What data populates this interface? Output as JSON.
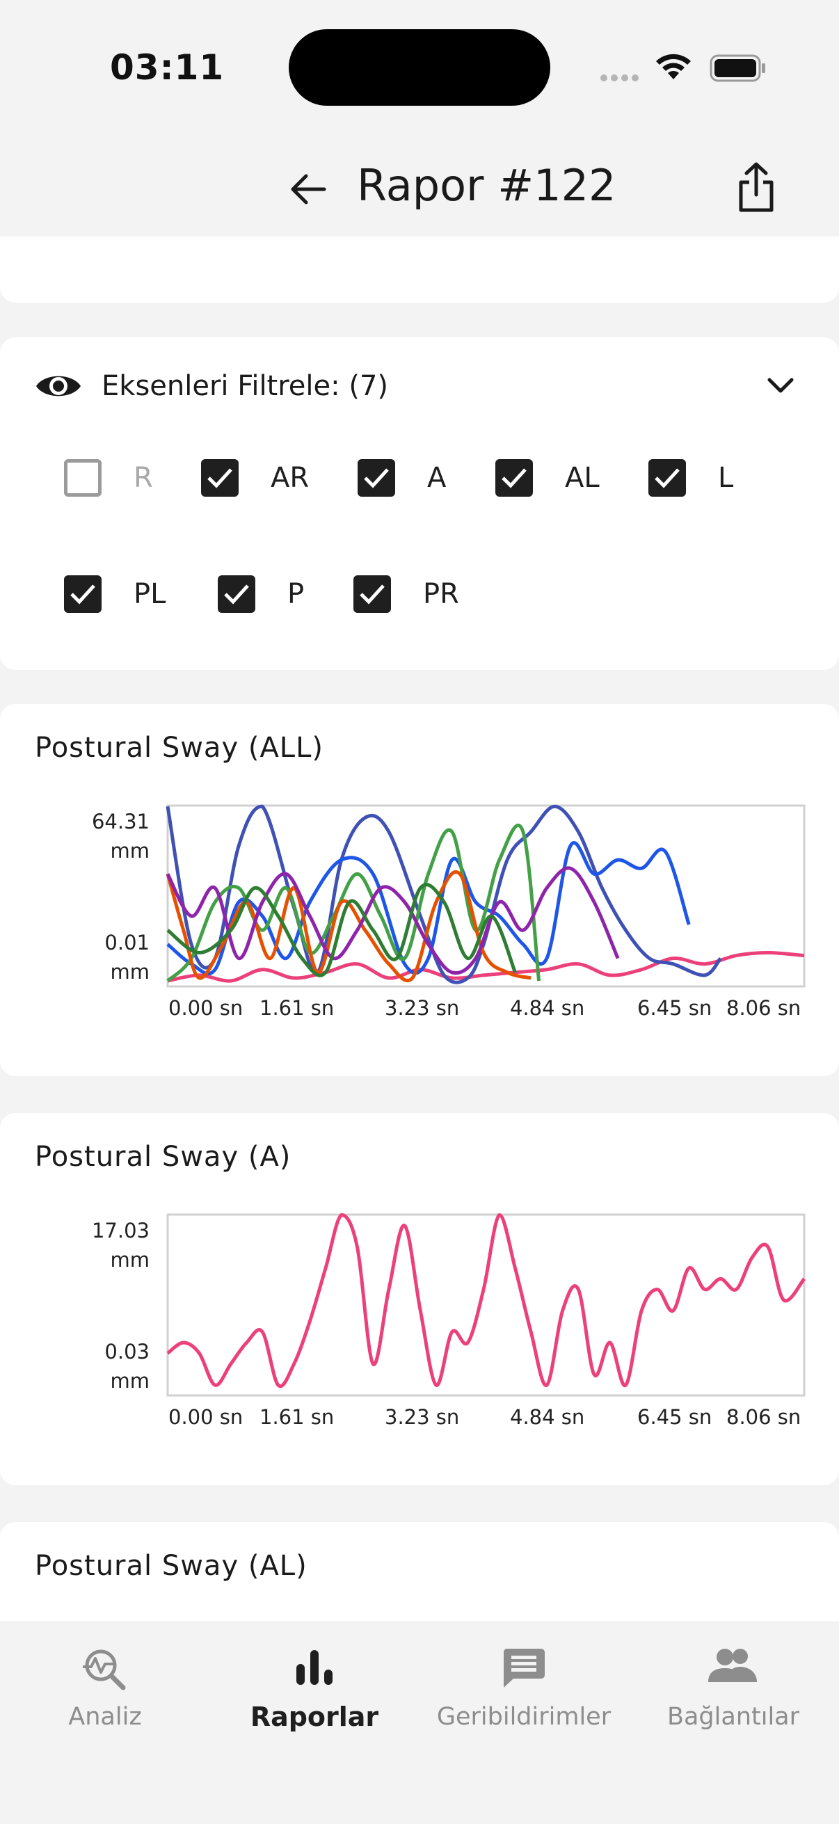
{
  "status_bar": {
    "time": "03:11"
  },
  "app_bar": {
    "title": "Rapor #122"
  },
  "filter": {
    "title": "Eksenleri Filtrele: (7)",
    "options": [
      {
        "label": "R",
        "checked": false
      },
      {
        "label": "AR",
        "checked": true
      },
      {
        "label": "A",
        "checked": true
      },
      {
        "label": "AL",
        "checked": true
      },
      {
        "label": "L",
        "checked": true
      },
      {
        "label": "PL",
        "checked": true
      },
      {
        "label": "P",
        "checked": true
      },
      {
        "label": "PR",
        "checked": true
      }
    ]
  },
  "charts": {
    "all": {
      "title": "Postural Sway (ALL)"
    },
    "a": {
      "title": "Postural Sway (A)"
    },
    "al": {
      "title": "Postural Sway (AL)"
    }
  },
  "chart_data": [
    {
      "type": "line",
      "title": "Postural Sway (ALL)",
      "y_ticks": [
        "64.31\nmm",
        "0.01\nmm"
      ],
      "x_ticks": [
        "0.00 sn",
        "1.61 sn",
        "3.23 sn",
        "4.84 sn",
        "6.45 sn",
        "8.06 sn"
      ],
      "ylim": [
        0.01,
        64.31
      ],
      "xlim": [
        0,
        8.06
      ],
      "series": [
        {
          "color": "#ec407a",
          "x": [
            0,
            0.4,
            0.8,
            1.2,
            1.6,
            2.0,
            2.4,
            2.8,
            3.2,
            3.6,
            4.0,
            4.4,
            4.8,
            5.2,
            5.6,
            6.0,
            6.4,
            6.8,
            7.2,
            7.6,
            8.06
          ],
          "y": [
            2,
            4,
            2,
            6,
            3,
            5,
            8,
            3,
            6,
            3,
            4,
            5,
            6,
            8,
            4,
            6,
            10,
            8,
            11,
            12,
            11
          ]
        },
        {
          "color": "#3f51b5",
          "x": [
            0,
            0.3,
            0.6,
            0.9,
            1.2,
            1.6,
            1.9,
            2.2,
            2.5,
            2.8,
            3.2,
            3.5,
            3.8,
            4.0,
            4.3,
            4.6,
            4.9,
            5.2,
            5.5,
            5.8,
            6.1,
            6.4,
            6.8,
            7.0
          ],
          "y": [
            64,
            15,
            10,
            50,
            64,
            28,
            5,
            45,
            60,
            55,
            25,
            4,
            3,
            15,
            45,
            55,
            64,
            55,
            35,
            20,
            10,
            8,
            4,
            10
          ]
        },
        {
          "color": "#1e56e8",
          "x": [
            0,
            0.3,
            0.6,
            0.9,
            1.2,
            1.5,
            1.8,
            2.2,
            2.6,
            3.0,
            3.3,
            3.6,
            3.9,
            4.2,
            4.5,
            4.8,
            5.1,
            5.4,
            5.7,
            6.0,
            6.3,
            6.6
          ],
          "y": [
            15,
            8,
            6,
            30,
            25,
            10,
            30,
            45,
            40,
            8,
            10,
            45,
            30,
            25,
            15,
            10,
            50,
            40,
            45,
            42,
            48,
            22
          ]
        },
        {
          "color": "#43a047",
          "x": [
            0,
            0.3,
            0.6,
            0.9,
            1.2,
            1.5,
            1.8,
            2.1,
            2.4,
            2.7,
            3.0,
            3.3,
            3.6,
            3.9,
            4.2,
            4.5,
            4.7
          ],
          "y": [
            2,
            10,
            30,
            35,
            20,
            35,
            12,
            25,
            40,
            25,
            10,
            40,
            55,
            20,
            45,
            55,
            2
          ]
        },
        {
          "color": "#e65100",
          "x": [
            0,
            0.2,
            0.4,
            0.7,
            1.0,
            1.3,
            1.6,
            1.9,
            2.2,
            2.5,
            2.8,
            3.1,
            3.4,
            3.7,
            4.0,
            4.3,
            4.6
          ],
          "y": [
            40,
            20,
            3,
            15,
            30,
            10,
            35,
            5,
            30,
            20,
            8,
            3,
            30,
            40,
            12,
            5,
            3
          ]
        },
        {
          "color": "#8e24aa",
          "x": [
            0,
            0.3,
            0.6,
            0.9,
            1.2,
            1.5,
            1.8,
            2.1,
            2.4,
            2.7,
            3.0,
            3.3,
            3.6,
            3.9,
            4.2,
            4.5,
            4.8,
            5.1,
            5.4,
            5.7
          ],
          "y": [
            40,
            25,
            35,
            10,
            30,
            40,
            25,
            10,
            20,
            35,
            30,
            15,
            5,
            10,
            30,
            20,
            35,
            42,
            30,
            10
          ]
        },
        {
          "color": "#2e7d32",
          "x": [
            0,
            0.4,
            0.8,
            1.1,
            1.4,
            1.7,
            2.0,
            2.3,
            2.6,
            2.9,
            3.2,
            3.5,
            3.8,
            4.1,
            4.4
          ],
          "y": [
            20,
            12,
            20,
            35,
            25,
            10,
            5,
            30,
            20,
            10,
            35,
            30,
            10,
            25,
            5
          ]
        }
      ]
    },
    {
      "type": "line",
      "title": "Postural Sway (A)",
      "y_ticks": [
        "17.03\nmm",
        "0.03\nmm"
      ],
      "x_ticks": [
        "0.00 sn",
        "1.61 sn",
        "3.23 sn",
        "4.84 sn",
        "6.45 sn",
        "8.06 sn"
      ],
      "ylim": [
        0.03,
        17.03
      ],
      "xlim": [
        0,
        8.06
      ],
      "series": [
        {
          "color": "#ec407a",
          "x": [
            0,
            0.2,
            0.4,
            0.6,
            0.8,
            1.0,
            1.2,
            1.4,
            1.6,
            1.8,
            2.0,
            2.2,
            2.4,
            2.6,
            2.8,
            3.0,
            3.2,
            3.4,
            3.6,
            3.8,
            4.0,
            4.2,
            4.4,
            4.6,
            4.8,
            5.0,
            5.2,
            5.4,
            5.6,
            5.8,
            6.0,
            6.2,
            6.4,
            6.6,
            6.8,
            7.0,
            7.2,
            7.4,
            7.6,
            7.8,
            8.06
          ],
          "y": [
            4,
            5,
            4,
            1,
            3,
            5,
            6,
            1,
            3,
            7,
            12,
            17,
            14,
            3,
            10,
            16,
            8,
            1,
            6,
            5,
            10,
            17,
            12,
            6,
            1,
            8,
            10,
            2,
            5,
            1,
            8,
            10,
            8,
            12,
            10,
            11,
            10,
            13,
            14,
            9,
            11
          ]
        }
      ]
    }
  ],
  "nav": [
    {
      "label": "Analiz",
      "icon": "analysis-icon",
      "active": false
    },
    {
      "label": "Raporlar",
      "icon": "bar-chart-icon",
      "active": true
    },
    {
      "label": "Geribildirimler",
      "icon": "message-icon",
      "active": false
    },
    {
      "label": "Bağlantılar",
      "icon": "people-icon",
      "active": false
    }
  ]
}
